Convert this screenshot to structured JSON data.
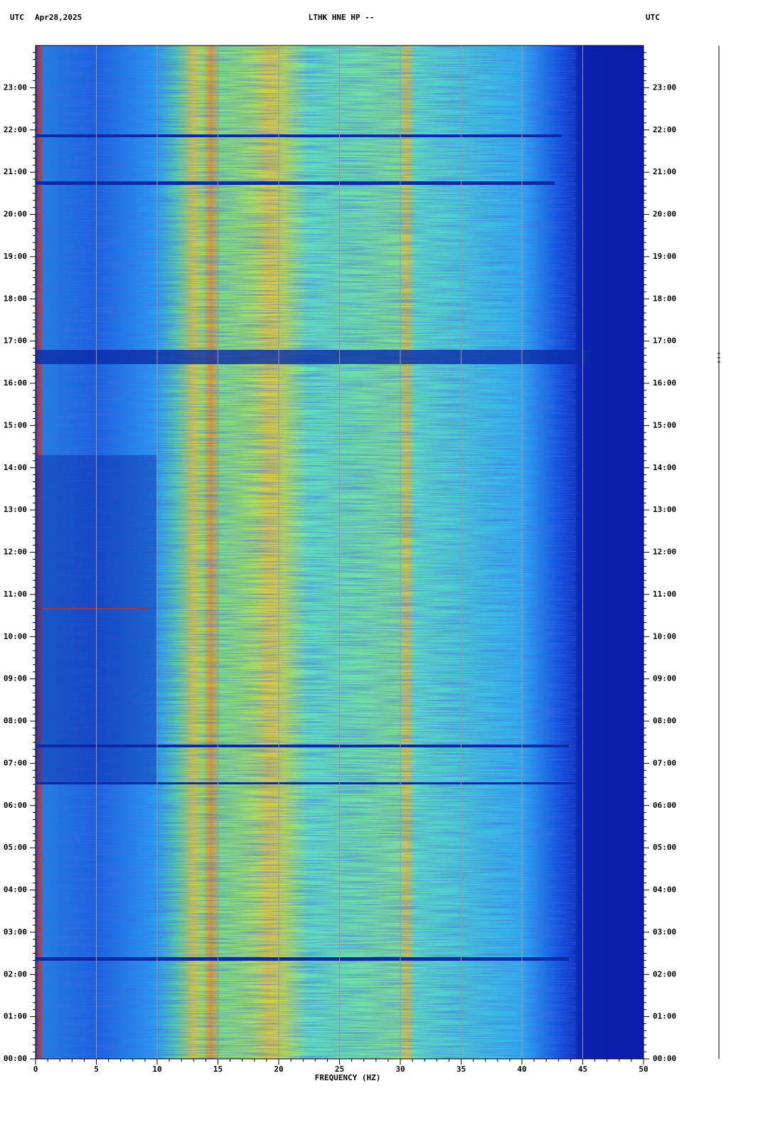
{
  "chart_data": {
    "type": "spectrogram",
    "timezone": "UTC",
    "date": "Apr28,2025",
    "title": "LTHK HNE HP --",
    "x_label": "FREQUENCY (HZ)",
    "xlim": [
      0,
      50
    ],
    "xticks": [
      0,
      5,
      10,
      15,
      20,
      25,
      30,
      35,
      40,
      45,
      50
    ],
    "ylim": [
      0,
      24
    ],
    "yticks": [
      {
        "value": 0,
        "label": "00:00"
      },
      {
        "value": 1,
        "label": "01:00"
      },
      {
        "value": 2,
        "label": "02:00"
      },
      {
        "value": 3,
        "label": "03:00"
      },
      {
        "value": 4,
        "label": "04:00"
      },
      {
        "value": 5,
        "label": "05:00"
      },
      {
        "value": 6,
        "label": "06:00"
      },
      {
        "value": 7,
        "label": "07:00"
      },
      {
        "value": 8,
        "label": "08:00"
      },
      {
        "value": 9,
        "label": "09:00"
      },
      {
        "value": 10,
        "label": "10:00"
      },
      {
        "value": 11,
        "label": "11:00"
      },
      {
        "value": 12,
        "label": "12:00"
      },
      {
        "value": 13,
        "label": "13:00"
      },
      {
        "value": 14,
        "label": "14:00"
      },
      {
        "value": 15,
        "label": "15:00"
      },
      {
        "value": 16,
        "label": "16:00"
      },
      {
        "value": 17,
        "label": "17:00"
      },
      {
        "value": 18,
        "label": "18:00"
      },
      {
        "value": 19,
        "label": "19:00"
      },
      {
        "value": 20,
        "label": "20:00"
      },
      {
        "value": 21,
        "label": "21:00"
      },
      {
        "value": 22,
        "label": "22:00"
      },
      {
        "value": 23,
        "label": "23:00"
      }
    ],
    "grid": true,
    "grid_color": "#9a9a9a"
  }
}
